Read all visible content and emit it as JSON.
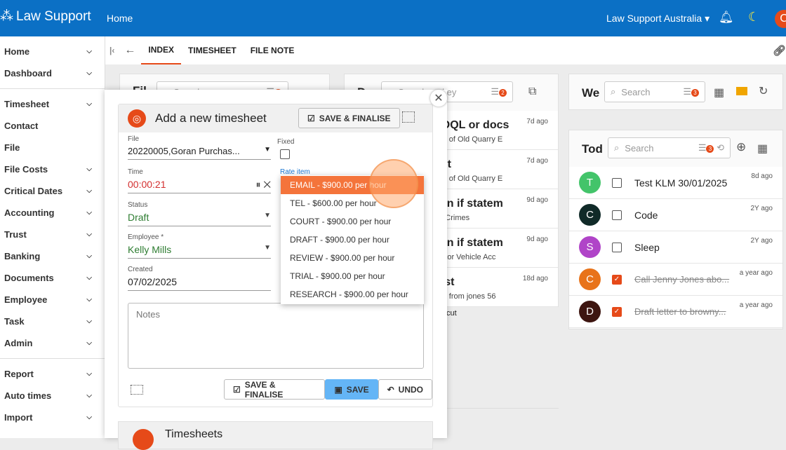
{
  "header": {
    "brand": "Law Support",
    "home": "Home",
    "org": "Law Support Australia",
    "avatar": "C"
  },
  "sidebar": {
    "items": [
      {
        "label": "Home",
        "chev": true
      },
      {
        "label": "Dashboard",
        "chev": true
      },
      {
        "sep": true
      },
      {
        "label": "Timesheet",
        "chev": true
      },
      {
        "label": "Contact",
        "chev": false
      },
      {
        "label": "File",
        "chev": false
      },
      {
        "label": "File Costs",
        "chev": true
      },
      {
        "label": "Critical Dates",
        "chev": true
      },
      {
        "label": "Accounting",
        "chev": true
      },
      {
        "label": "Trust",
        "chev": true
      },
      {
        "label": "Banking",
        "chev": true
      },
      {
        "label": "Documents",
        "chev": true
      },
      {
        "label": "Employee",
        "chev": true
      },
      {
        "label": "Task",
        "chev": true
      },
      {
        "label": "Admin",
        "chev": true
      },
      {
        "sep": true
      },
      {
        "label": "Report",
        "chev": true
      },
      {
        "label": "Auto times",
        "chev": true
      },
      {
        "label": "Import",
        "chev": true
      }
    ]
  },
  "tabs": [
    "INDEX",
    "TIMESHEET",
    "FILE NOTE"
  ],
  "files_panel": {
    "title": "Fil",
    "search_placeholder": "Search",
    "badge": "1"
  },
  "docs_panel": {
    "title": "D",
    "search_placeholder": "Search on key",
    "badge": "2",
    "rows": [
      {
        "title": "r DQL or docs",
        "sub": "ase of Old Quarry E",
        "ago": "7d ago"
      },
      {
        "title": "ent",
        "sub": "ase of Old Quarry E",
        "ago": "7d ago"
      },
      {
        "title": "s in if statem",
        "sub": "rty Crimes",
        "ago": "9d ago"
      },
      {
        "title": "s in if statem",
        "sub": " Motor Vehicle Acc",
        "ago": "9d ago"
      },
      {
        "title": "test",
        "sub": "ase from jones 56",
        "ago": "18d ago"
      }
    ],
    "extra": "cut"
  },
  "week_panel": {
    "title": "We",
    "search_placeholder": "Search",
    "badge": "3"
  },
  "todo_panel": {
    "title": "Tod",
    "search_placeholder": "Search",
    "badge": "3",
    "items": [
      {
        "avatar": "T",
        "color": "#43c46a",
        "text": "Test KLM 30/01/2025",
        "ago": "8d ago",
        "done": false
      },
      {
        "avatar": "C",
        "color": "#102a28",
        "text": "Code",
        "ago": "2Y ago",
        "done": false
      },
      {
        "avatar": "S",
        "color": "#b044c8",
        "text": "Sleep",
        "ago": "2Y ago",
        "done": false
      },
      {
        "avatar": "C",
        "color": "#e8731a",
        "text": "Call Jenny Jones abo...",
        "ago": "a year ago",
        "done": true
      },
      {
        "avatar": "D",
        "color": "#3d1510",
        "text": "Draft letter to browny...",
        "ago": "a year ago",
        "done": true
      }
    ]
  },
  "dialog": {
    "title": "Add a new timesheet",
    "save_finalise": "SAVE & FINALISE",
    "save": "SAVE",
    "undo": "UNDO",
    "file_label": "File",
    "file_value": "20220005,Goran Purchas...",
    "fixed_label": "Fixed",
    "time_label": "Time",
    "time_value": "00:00:21",
    "rate_label": "Rate item",
    "status_label": "Status",
    "status_value": "Draft",
    "employee_label": "Employee *",
    "employee_value": "Kelly Mills",
    "created_label": "Created",
    "created_value": "07/02/2025",
    "notes_placeholder": "Notes"
  },
  "rate_options": [
    "EMAIL - $900.00 per hour",
    "TEL - $600.00 per hour",
    "COURT - $900.00 per hour",
    "DRAFT - $900.00 per hour",
    "REVIEW - $900.00 per hour",
    "TRIAL - $900.00 per hour",
    "RESEARCH - $900.00 per hour"
  ],
  "timesheets_panel": {
    "title": "Timesheets"
  },
  "colors": {
    "header": "#0b70c5",
    "accent": "#e64a19",
    "save": "#64b5f6",
    "green": "#2e7d32",
    "time": "#d32f2f"
  }
}
